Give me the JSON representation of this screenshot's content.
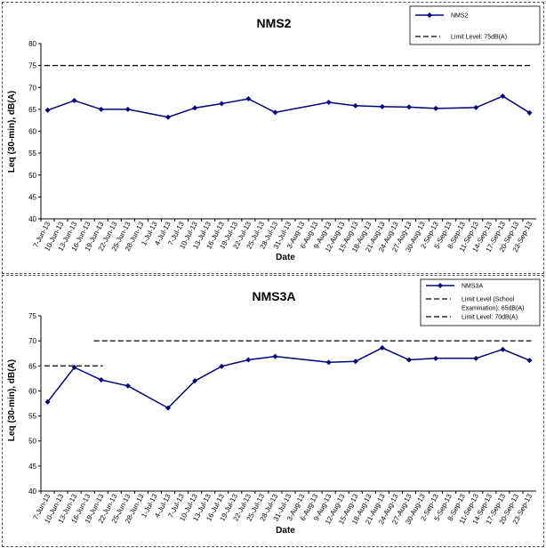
{
  "chart_data": [
    {
      "type": "line",
      "title": "NMS2",
      "xlabel": "Date",
      "ylabel": "Leq (30-min), dB(A)",
      "ylim": [
        40,
        80
      ],
      "yticks": [
        40,
        45,
        50,
        55,
        60,
        65,
        70,
        75,
        80
      ],
      "categories": [
        "7-Jun-13",
        "10-Jun-13",
        "13-Jun-13",
        "16-Jun-13",
        "19-Jun-13",
        "22-Jun-13",
        "25-Jun-13",
        "28-Jun-13",
        "1-Jul-13",
        "4-Jul-13",
        "7-Jul-13",
        "10-Jul-13",
        "13-Jul-13",
        "16-Jul-13",
        "19-Jul-13",
        "22-Jul-13",
        "25-Jul-13",
        "28-Jul-13",
        "31-Jul-13",
        "3-Aug-13",
        "6-Aug-13",
        "9-Aug-13",
        "12-Aug-13",
        "15-Aug-13",
        "18-Aug-13",
        "21-Aug-13",
        "24-Aug-13",
        "27-Aug-13",
        "30-Aug-13",
        "2-Sep-13",
        "5-Sep-13",
        "8-Sep-13",
        "11-Sep-13",
        "14-Sep-13",
        "17-Sep-13",
        "20-Sep-13",
        "23-Sep-13"
      ],
      "series": [
        {
          "name": "NMS2",
          "color": "#000080",
          "points": [
            {
              "x": "7-Jun-13",
              "y": 64.8
            },
            {
              "x": "13-Jun-13",
              "y": 67.0
            },
            {
              "x": "19-Jun-13",
              "y": 65.0
            },
            {
              "x": "25-Jun-13",
              "y": 65.0
            },
            {
              "x": "4-Jul-13",
              "y": 63.2
            },
            {
              "x": "10-Jul-13",
              "y": 65.3
            },
            {
              "x": "16-Jul-13",
              "y": 66.3
            },
            {
              "x": "22-Jul-13",
              "y": 67.4
            },
            {
              "x": "28-Jul-13",
              "y": 64.3
            },
            {
              "x": "9-Aug-13",
              "y": 66.6
            },
            {
              "x": "15-Aug-13",
              "y": 65.8
            },
            {
              "x": "21-Aug-13",
              "y": 65.6
            },
            {
              "x": "27-Aug-13",
              "y": 65.5
            },
            {
              "x": "2-Sep-13",
              "y": 65.2
            },
            {
              "x": "11-Sep-13",
              "y": 65.4
            },
            {
              "x": "17-Sep-13",
              "y": 68.0
            },
            {
              "x": "23-Sep-13",
              "y": 64.2
            }
          ]
        }
      ],
      "limits": [
        {
          "name": "Limit Level: 75dB(A)",
          "from": "7-Jun-13",
          "to": "23-Sep-13",
          "y": 75
        }
      ],
      "legend": [
        "NMS2",
        "Limit Level: 75dB(A)"
      ],
      "legend_position": "top-right"
    },
    {
      "type": "line",
      "title": "NMS3A",
      "xlabel": "Date",
      "ylabel": "Leq (30-min), dB(A)",
      "ylim": [
        40,
        75
      ],
      "yticks": [
        40,
        45,
        50,
        55,
        60,
        65,
        70,
        75
      ],
      "categories": [
        "7-Jun-13",
        "10-Jun-13",
        "13-Jun-13",
        "16-Jun-13",
        "19-Jun-13",
        "22-Jun-13",
        "25-Jun-13",
        "28-Jun-13",
        "1-Jul-13",
        "4-Jul-13",
        "7-Jul-13",
        "10-Jul-13",
        "13-Jul-13",
        "16-Jul-13",
        "19-Jul-13",
        "22-Jul-13",
        "25-Jul-13",
        "28-Jul-13",
        "31-Jul-13",
        "3-Aug-13",
        "6-Aug-13",
        "9-Aug-13",
        "12-Aug-13",
        "15-Aug-13",
        "18-Aug-13",
        "21-Aug-13",
        "24-Aug-13",
        "27-Aug-13",
        "30-Aug-13",
        "2-Sep-13",
        "5-Sep-13",
        "8-Sep-13",
        "11-Sep-13",
        "14-Sep-13",
        "17-Sep-13",
        "20-Sep-13",
        "23-Sep-13"
      ],
      "series": [
        {
          "name": "NMS3A",
          "color": "#000080",
          "points": [
            {
              "x": "7-Jun-13",
              "y": 57.8
            },
            {
              "x": "13-Jun-13",
              "y": 64.7
            },
            {
              "x": "19-Jun-13",
              "y": 62.2
            },
            {
              "x": "25-Jun-13",
              "y": 61.0
            },
            {
              "x": "4-Jul-13",
              "y": 56.6
            },
            {
              "x": "10-Jul-13",
              "y": 62.0
            },
            {
              "x": "16-Jul-13",
              "y": 64.9
            },
            {
              "x": "22-Jul-13",
              "y": 66.2
            },
            {
              "x": "28-Jul-13",
              "y": 66.9
            },
            {
              "x": "9-Aug-13",
              "y": 65.7
            },
            {
              "x": "15-Aug-13",
              "y": 65.9
            },
            {
              "x": "21-Aug-13",
              "y": 68.6
            },
            {
              "x": "27-Aug-13",
              "y": 66.2
            },
            {
              "x": "2-Sep-13",
              "y": 66.5
            },
            {
              "x": "11-Sep-13",
              "y": 66.5
            },
            {
              "x": "17-Sep-13",
              "y": 68.3
            },
            {
              "x": "23-Sep-13",
              "y": 66.1
            }
          ]
        }
      ],
      "limits": [
        {
          "name": "Limit Level (School Examination): 65dB(A)",
          "from": "7-Jun-13",
          "to": "19-Jun-13",
          "y": 65
        },
        {
          "name": "Limit Level: 70dB(A)",
          "from": "19-Jun-13",
          "to": "23-Sep-13",
          "y": 70
        }
      ],
      "legend": [
        "NMS3A",
        "Limit Level (School",
        "Examination): 65dB(A)",
        "Limit Level: 70dB(A)"
      ],
      "legend_position": "top-right"
    }
  ]
}
